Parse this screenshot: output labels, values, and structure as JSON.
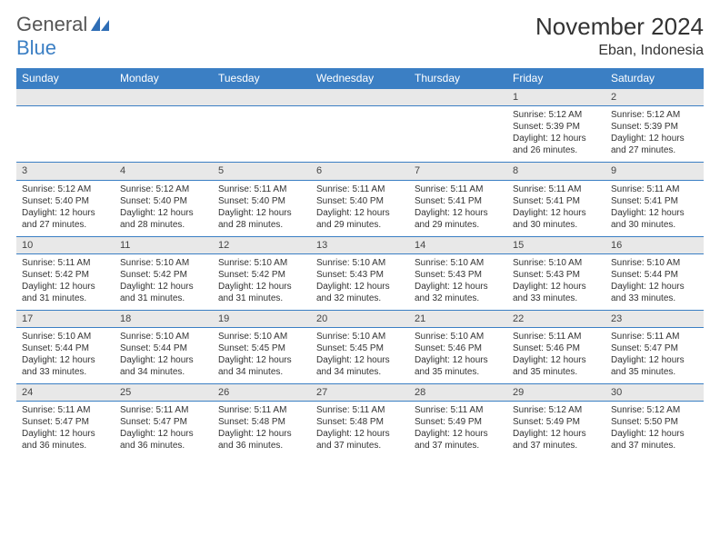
{
  "logo": {
    "word1": "General",
    "word2": "Blue"
  },
  "title": "November 2024",
  "location": "Eban, Indonesia",
  "colors": {
    "header_bg": "#3b7fc4",
    "header_text": "#ffffff",
    "daynum_bg": "#e8e8e8",
    "border": "#3b7fc4",
    "text": "#333333",
    "background": "#ffffff"
  },
  "typography": {
    "title_fontsize": 26,
    "location_fontsize": 16,
    "dayhead_fontsize": 12,
    "cell_fontsize": 10
  },
  "day_names": [
    "Sunday",
    "Monday",
    "Tuesday",
    "Wednesday",
    "Thursday",
    "Friday",
    "Saturday"
  ],
  "weeks": [
    [
      null,
      null,
      null,
      null,
      null,
      {
        "n": "1",
        "sr": "Sunrise: 5:12 AM",
        "ss": "Sunset: 5:39 PM",
        "dl": "Daylight: 12 hours and 26 minutes."
      },
      {
        "n": "2",
        "sr": "Sunrise: 5:12 AM",
        "ss": "Sunset: 5:39 PM",
        "dl": "Daylight: 12 hours and 27 minutes."
      }
    ],
    [
      {
        "n": "3",
        "sr": "Sunrise: 5:12 AM",
        "ss": "Sunset: 5:40 PM",
        "dl": "Daylight: 12 hours and 27 minutes."
      },
      {
        "n": "4",
        "sr": "Sunrise: 5:12 AM",
        "ss": "Sunset: 5:40 PM",
        "dl": "Daylight: 12 hours and 28 minutes."
      },
      {
        "n": "5",
        "sr": "Sunrise: 5:11 AM",
        "ss": "Sunset: 5:40 PM",
        "dl": "Daylight: 12 hours and 28 minutes."
      },
      {
        "n": "6",
        "sr": "Sunrise: 5:11 AM",
        "ss": "Sunset: 5:40 PM",
        "dl": "Daylight: 12 hours and 29 minutes."
      },
      {
        "n": "7",
        "sr": "Sunrise: 5:11 AM",
        "ss": "Sunset: 5:41 PM",
        "dl": "Daylight: 12 hours and 29 minutes."
      },
      {
        "n": "8",
        "sr": "Sunrise: 5:11 AM",
        "ss": "Sunset: 5:41 PM",
        "dl": "Daylight: 12 hours and 30 minutes."
      },
      {
        "n": "9",
        "sr": "Sunrise: 5:11 AM",
        "ss": "Sunset: 5:41 PM",
        "dl": "Daylight: 12 hours and 30 minutes."
      }
    ],
    [
      {
        "n": "10",
        "sr": "Sunrise: 5:11 AM",
        "ss": "Sunset: 5:42 PM",
        "dl": "Daylight: 12 hours and 31 minutes."
      },
      {
        "n": "11",
        "sr": "Sunrise: 5:10 AM",
        "ss": "Sunset: 5:42 PM",
        "dl": "Daylight: 12 hours and 31 minutes."
      },
      {
        "n": "12",
        "sr": "Sunrise: 5:10 AM",
        "ss": "Sunset: 5:42 PM",
        "dl": "Daylight: 12 hours and 31 minutes."
      },
      {
        "n": "13",
        "sr": "Sunrise: 5:10 AM",
        "ss": "Sunset: 5:43 PM",
        "dl": "Daylight: 12 hours and 32 minutes."
      },
      {
        "n": "14",
        "sr": "Sunrise: 5:10 AM",
        "ss": "Sunset: 5:43 PM",
        "dl": "Daylight: 12 hours and 32 minutes."
      },
      {
        "n": "15",
        "sr": "Sunrise: 5:10 AM",
        "ss": "Sunset: 5:43 PM",
        "dl": "Daylight: 12 hours and 33 minutes."
      },
      {
        "n": "16",
        "sr": "Sunrise: 5:10 AM",
        "ss": "Sunset: 5:44 PM",
        "dl": "Daylight: 12 hours and 33 minutes."
      }
    ],
    [
      {
        "n": "17",
        "sr": "Sunrise: 5:10 AM",
        "ss": "Sunset: 5:44 PM",
        "dl": "Daylight: 12 hours and 33 minutes."
      },
      {
        "n": "18",
        "sr": "Sunrise: 5:10 AM",
        "ss": "Sunset: 5:44 PM",
        "dl": "Daylight: 12 hours and 34 minutes."
      },
      {
        "n": "19",
        "sr": "Sunrise: 5:10 AM",
        "ss": "Sunset: 5:45 PM",
        "dl": "Daylight: 12 hours and 34 minutes."
      },
      {
        "n": "20",
        "sr": "Sunrise: 5:10 AM",
        "ss": "Sunset: 5:45 PM",
        "dl": "Daylight: 12 hours and 34 minutes."
      },
      {
        "n": "21",
        "sr": "Sunrise: 5:10 AM",
        "ss": "Sunset: 5:46 PM",
        "dl": "Daylight: 12 hours and 35 minutes."
      },
      {
        "n": "22",
        "sr": "Sunrise: 5:11 AM",
        "ss": "Sunset: 5:46 PM",
        "dl": "Daylight: 12 hours and 35 minutes."
      },
      {
        "n": "23",
        "sr": "Sunrise: 5:11 AM",
        "ss": "Sunset: 5:47 PM",
        "dl": "Daylight: 12 hours and 35 minutes."
      }
    ],
    [
      {
        "n": "24",
        "sr": "Sunrise: 5:11 AM",
        "ss": "Sunset: 5:47 PM",
        "dl": "Daylight: 12 hours and 36 minutes."
      },
      {
        "n": "25",
        "sr": "Sunrise: 5:11 AM",
        "ss": "Sunset: 5:47 PM",
        "dl": "Daylight: 12 hours and 36 minutes."
      },
      {
        "n": "26",
        "sr": "Sunrise: 5:11 AM",
        "ss": "Sunset: 5:48 PM",
        "dl": "Daylight: 12 hours and 36 minutes."
      },
      {
        "n": "27",
        "sr": "Sunrise: 5:11 AM",
        "ss": "Sunset: 5:48 PM",
        "dl": "Daylight: 12 hours and 37 minutes."
      },
      {
        "n": "28",
        "sr": "Sunrise: 5:11 AM",
        "ss": "Sunset: 5:49 PM",
        "dl": "Daylight: 12 hours and 37 minutes."
      },
      {
        "n": "29",
        "sr": "Sunrise: 5:12 AM",
        "ss": "Sunset: 5:49 PM",
        "dl": "Daylight: 12 hours and 37 minutes."
      },
      {
        "n": "30",
        "sr": "Sunrise: 5:12 AM",
        "ss": "Sunset: 5:50 PM",
        "dl": "Daylight: 12 hours and 37 minutes."
      }
    ]
  ]
}
